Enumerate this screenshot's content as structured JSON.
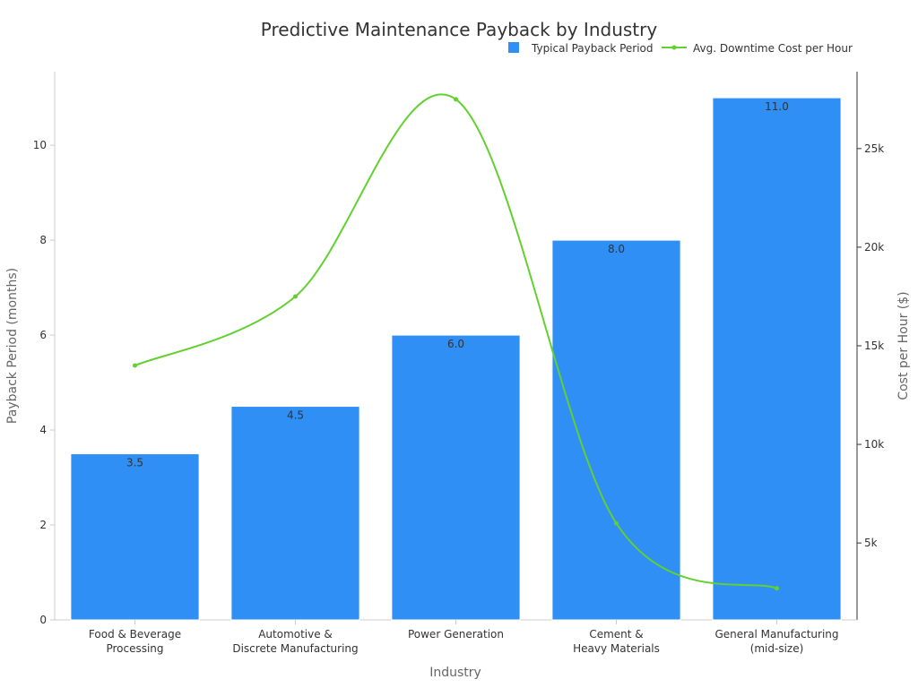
{
  "chart_data": {
    "type": "bar",
    "title": "Predictive Maintenance Payback by Industry",
    "xlabel": "Industry",
    "ylabel": "Payback Period (months)",
    "y2label": "Cost per Hour ($)",
    "categories": [
      [
        "Food & Beverage",
        "Processing"
      ],
      [
        "Automotive &",
        "Discrete Manufacturing"
      ],
      [
        "Power Generation"
      ],
      [
        "Cement &",
        "Heavy Materials"
      ],
      [
        "General Manufacturing",
        "(mid-size)"
      ]
    ],
    "ylim": [
      0,
      11.55
    ],
    "y2lim": [
      1100,
      28900
    ],
    "yticks": [
      0,
      2,
      4,
      6,
      8,
      10
    ],
    "y2ticks": [
      5000,
      10000,
      15000,
      20000,
      25000
    ],
    "y2tick_labels": [
      "5k",
      "10k",
      "15k",
      "20k",
      "25k"
    ],
    "series": [
      {
        "name": "Typical Payback Period",
        "kind": "bar",
        "axis": "left",
        "color": "#2f8ff5",
        "values": [
          3.5,
          4.5,
          6.0,
          8.0,
          11.0
        ],
        "labels": [
          "3.5",
          "4.5",
          "6.0",
          "8.0",
          "11.0"
        ]
      },
      {
        "name": "Avg. Downtime Cost per Hour",
        "kind": "line",
        "axis": "right",
        "color": "#62d02f",
        "smooth": true,
        "values": [
          14000,
          17500,
          27500,
          6000,
          2700
        ]
      }
    ],
    "legend": "top-right",
    "grid": false
  }
}
